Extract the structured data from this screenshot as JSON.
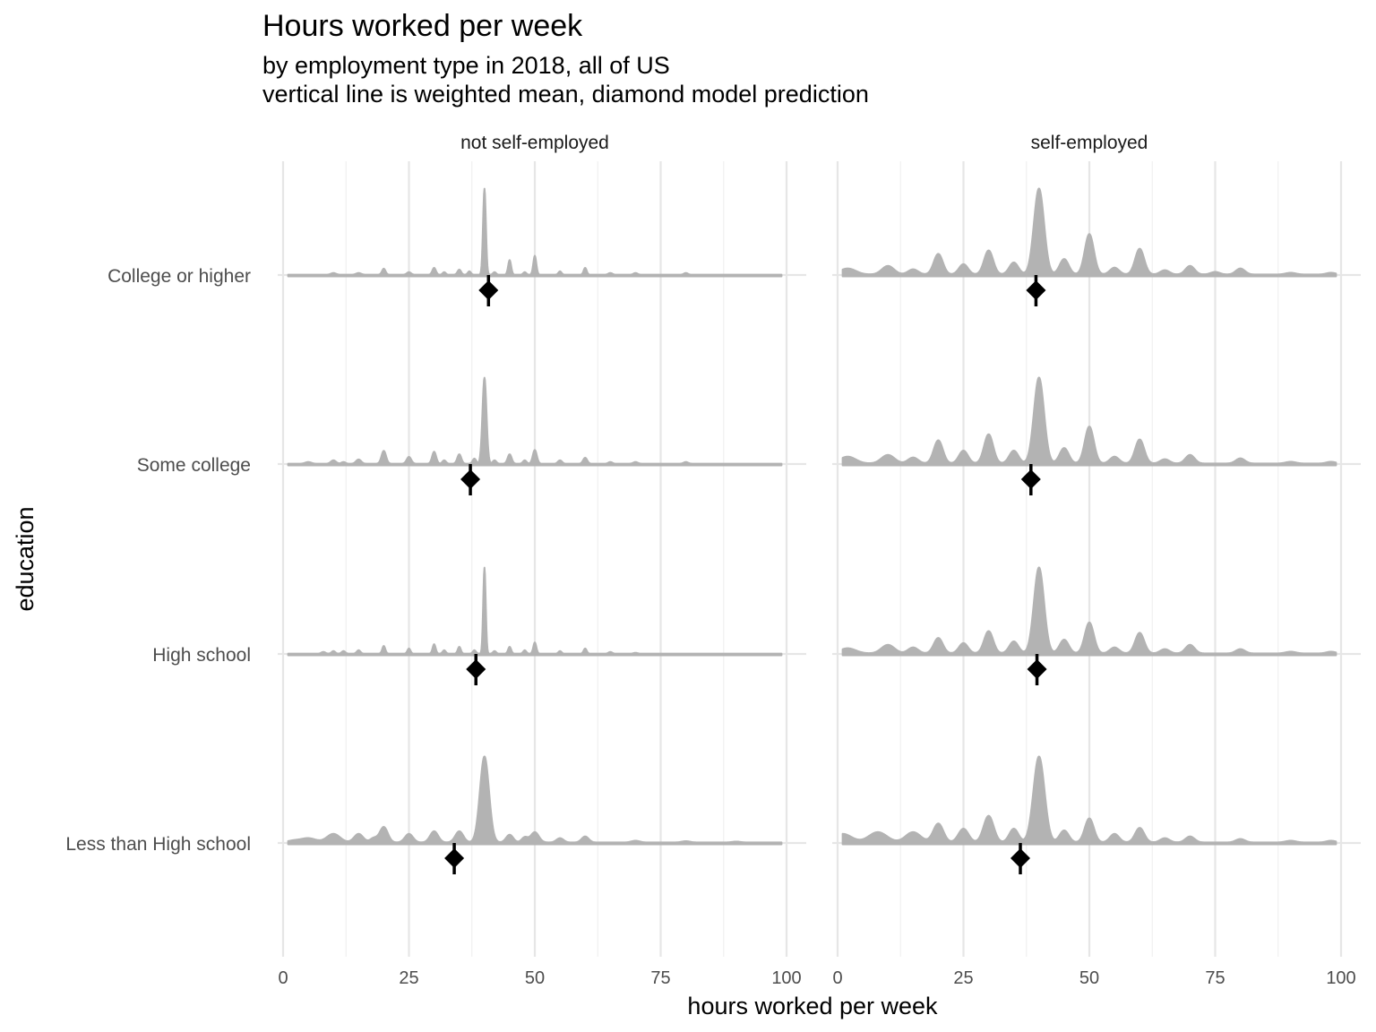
{
  "chart_data": {
    "type": "ridgeline",
    "title": "Hours worked per week",
    "subtitle_lines": [
      "by employment type in 2018, all of US",
      "vertical line is weighted mean, diamond model prediction"
    ],
    "xlabel": "hours worked per week",
    "ylabel": "education",
    "xlim": [
      0,
      100
    ],
    "x_ticks": [
      0,
      25,
      50,
      75,
      100
    ],
    "grid": true,
    "fill_color": "#b3b3b3",
    "marker_color": "#000000",
    "categories": [
      "College or higher",
      "Some college",
      "High school",
      "Less than High school"
    ],
    "panels": [
      {
        "name": "not self-employed",
        "series": [
          {
            "category": "College or higher",
            "weighted_mean": 40.8,
            "model_prediction": 40.8,
            "peak_height": 1.0,
            "baseline_width": 0.35,
            "peaks": [
              [
                10,
                0.02,
                0.5
              ],
              [
                15,
                0.02,
                0.5
              ],
              [
                20,
                0.07,
                0.35
              ],
              [
                25,
                0.03,
                0.4
              ],
              [
                30,
                0.08,
                0.35
              ],
              [
                32,
                0.03,
                0.3
              ],
              [
                35,
                0.06,
                0.35
              ],
              [
                37,
                0.04,
                0.3
              ],
              [
                40,
                1.0,
                0.28
              ],
              [
                42,
                0.03,
                0.3
              ],
              [
                45,
                0.17,
                0.3
              ],
              [
                48,
                0.03,
                0.3
              ],
              [
                50,
                0.22,
                0.3
              ],
              [
                55,
                0.04,
                0.3
              ],
              [
                60,
                0.08,
                0.3
              ],
              [
                65,
                0.02,
                0.4
              ],
              [
                70,
                0.02,
                0.4
              ],
              [
                80,
                0.02,
                0.4
              ]
            ]
          },
          {
            "category": "Some college",
            "weighted_mean": 37.2,
            "model_prediction": 37.2,
            "peak_height": 1.0,
            "baseline_width": 0.35,
            "peaks": [
              [
                5,
                0.02,
                0.6
              ],
              [
                10,
                0.04,
                0.5
              ],
              [
                12,
                0.02,
                0.4
              ],
              [
                15,
                0.05,
                0.5
              ],
              [
                20,
                0.15,
                0.45
              ],
              [
                25,
                0.08,
                0.45
              ],
              [
                30,
                0.14,
                0.4
              ],
              [
                32,
                0.04,
                0.35
              ],
              [
                35,
                0.11,
                0.4
              ],
              [
                38,
                0.06,
                0.35
              ],
              [
                40,
                1.0,
                0.4
              ],
              [
                42,
                0.04,
                0.35
              ],
              [
                45,
                0.11,
                0.4
              ],
              [
                48,
                0.04,
                0.35
              ],
              [
                50,
                0.16,
                0.4
              ],
              [
                55,
                0.04,
                0.4
              ],
              [
                60,
                0.07,
                0.4
              ],
              [
                65,
                0.02,
                0.4
              ],
              [
                70,
                0.02,
                0.45
              ],
              [
                80,
                0.02,
                0.45
              ]
            ]
          },
          {
            "category": "High school",
            "weighted_mean": 38.3,
            "model_prediction": 38.3,
            "peak_height": 1.0,
            "baseline_width": 0.35,
            "peaks": [
              [
                8,
                0.02,
                0.4
              ],
              [
                10,
                0.03,
                0.35
              ],
              [
                12,
                0.03,
                0.35
              ],
              [
                15,
                0.04,
                0.35
              ],
              [
                20,
                0.09,
                0.3
              ],
              [
                25,
                0.06,
                0.3
              ],
              [
                30,
                0.11,
                0.3
              ],
              [
                32,
                0.04,
                0.3
              ],
              [
                35,
                0.08,
                0.3
              ],
              [
                38,
                0.04,
                0.3
              ],
              [
                40,
                1.0,
                0.25
              ],
              [
                42,
                0.03,
                0.3
              ],
              [
                45,
                0.08,
                0.3
              ],
              [
                48,
                0.04,
                0.3
              ],
              [
                50,
                0.13,
                0.3
              ],
              [
                55,
                0.03,
                0.3
              ],
              [
                60,
                0.06,
                0.3
              ],
              [
                65,
                0.02,
                0.35
              ],
              [
                70,
                0.01,
                0.4
              ]
            ]
          },
          {
            "category": "Less than High school",
            "weighted_mean": 34.0,
            "model_prediction": 34.0,
            "peak_height": 1.0,
            "baseline_width": 0.6,
            "peaks": [
              [
                2,
                0.02,
                1.2
              ],
              [
                5,
                0.05,
                1.5
              ],
              [
                10,
                0.1,
                1.3
              ],
              [
                15,
                0.1,
                0.9
              ],
              [
                18,
                0.05,
                0.7
              ],
              [
                20,
                0.18,
                0.8
              ],
              [
                25,
                0.1,
                0.8
              ],
              [
                30,
                0.13,
                0.8
              ],
              [
                35,
                0.13,
                0.8
              ],
              [
                40,
                1.0,
                0.9
              ],
              [
                45,
                0.09,
                0.7
              ],
              [
                48,
                0.06,
                0.6
              ],
              [
                50,
                0.12,
                0.8
              ],
              [
                55,
                0.05,
                0.7
              ],
              [
                60,
                0.07,
                0.7
              ],
              [
                70,
                0.02,
                0.8
              ],
              [
                80,
                0.015,
                0.8
              ],
              [
                90,
                0.01,
                0.8
              ]
            ]
          }
        ]
      },
      {
        "name": "self-employed",
        "series": [
          {
            "category": "College or higher",
            "weighted_mean": 39.4,
            "model_prediction": 39.4,
            "peak_height": 1.0,
            "baseline_width": 0.6,
            "peaks": [
              [
                2,
                0.07,
                1.6
              ],
              [
                10,
                0.1,
                1.2
              ],
              [
                15,
                0.06,
                1.0
              ],
              [
                20,
                0.24,
                0.9
              ],
              [
                25,
                0.12,
                0.9
              ],
              [
                30,
                0.28,
                0.9
              ],
              [
                35,
                0.14,
                0.9
              ],
              [
                40,
                1.0,
                1.0
              ],
              [
                45,
                0.18,
                0.9
              ],
              [
                50,
                0.47,
                0.9
              ],
              [
                55,
                0.08,
                0.9
              ],
              [
                60,
                0.3,
                0.9
              ],
              [
                65,
                0.05,
                0.9
              ],
              [
                70,
                0.1,
                0.9
              ],
              [
                75,
                0.03,
                0.9
              ],
              [
                80,
                0.07,
                0.9
              ],
              [
                90,
                0.02,
                1.0
              ],
              [
                98,
                0.02,
                0.9
              ]
            ]
          },
          {
            "category": "Some college",
            "weighted_mean": 38.4,
            "model_prediction": 38.4,
            "peak_height": 1.0,
            "baseline_width": 0.6,
            "peaks": [
              [
                2,
                0.08,
                1.6
              ],
              [
                10,
                0.1,
                1.3
              ],
              [
                15,
                0.07,
                1.0
              ],
              [
                20,
                0.27,
                0.9
              ],
              [
                25,
                0.15,
                0.9
              ],
              [
                30,
                0.34,
                0.9
              ],
              [
                35,
                0.15,
                0.9
              ],
              [
                40,
                1.0,
                1.0
              ],
              [
                45,
                0.18,
                0.9
              ],
              [
                50,
                0.43,
                0.9
              ],
              [
                55,
                0.08,
                0.9
              ],
              [
                60,
                0.28,
                0.9
              ],
              [
                65,
                0.05,
                0.9
              ],
              [
                70,
                0.1,
                0.9
              ],
              [
                80,
                0.06,
                0.9
              ],
              [
                90,
                0.02,
                1.0
              ],
              [
                98,
                0.02,
                0.9
              ]
            ]
          },
          {
            "category": "High school",
            "weighted_mean": 39.6,
            "model_prediction": 39.6,
            "peak_height": 1.0,
            "baseline_width": 0.6,
            "peaks": [
              [
                2,
                0.06,
                1.6
              ],
              [
                10,
                0.1,
                1.3
              ],
              [
                15,
                0.07,
                1.0
              ],
              [
                20,
                0.18,
                0.9
              ],
              [
                25,
                0.12,
                0.9
              ],
              [
                30,
                0.26,
                0.9
              ],
              [
                35,
                0.14,
                0.9
              ],
              [
                40,
                1.0,
                1.0
              ],
              [
                45,
                0.16,
                0.9
              ],
              [
                50,
                0.36,
                0.9
              ],
              [
                55,
                0.07,
                0.9
              ],
              [
                60,
                0.24,
                0.9
              ],
              [
                65,
                0.05,
                0.9
              ],
              [
                70,
                0.1,
                0.9
              ],
              [
                80,
                0.05,
                0.9
              ],
              [
                90,
                0.02,
                1.0
              ],
              [
                98,
                0.02,
                0.9
              ]
            ]
          },
          {
            "category": "Less than High school",
            "weighted_mean": 36.3,
            "model_prediction": 36.3,
            "peak_height": 1.0,
            "baseline_width": 0.6,
            "peaks": [
              [
                1,
                0.1,
                1.8
              ],
              [
                8,
                0.12,
                1.8
              ],
              [
                15,
                0.12,
                1.5
              ],
              [
                20,
                0.22,
                1.0
              ],
              [
                25,
                0.16,
                1.0
              ],
              [
                30,
                0.31,
                1.0
              ],
              [
                35,
                0.16,
                0.9
              ],
              [
                40,
                1.0,
                1.1
              ],
              [
                45,
                0.14,
                0.9
              ],
              [
                50,
                0.28,
                0.9
              ],
              [
                55,
                0.1,
                0.9
              ],
              [
                60,
                0.17,
                0.9
              ],
              [
                65,
                0.05,
                0.9
              ],
              [
                70,
                0.07,
                0.9
              ],
              [
                80,
                0.04,
                0.9
              ],
              [
                90,
                0.02,
                1.0
              ],
              [
                98,
                0.02,
                0.9
              ]
            ]
          }
        ]
      }
    ]
  }
}
